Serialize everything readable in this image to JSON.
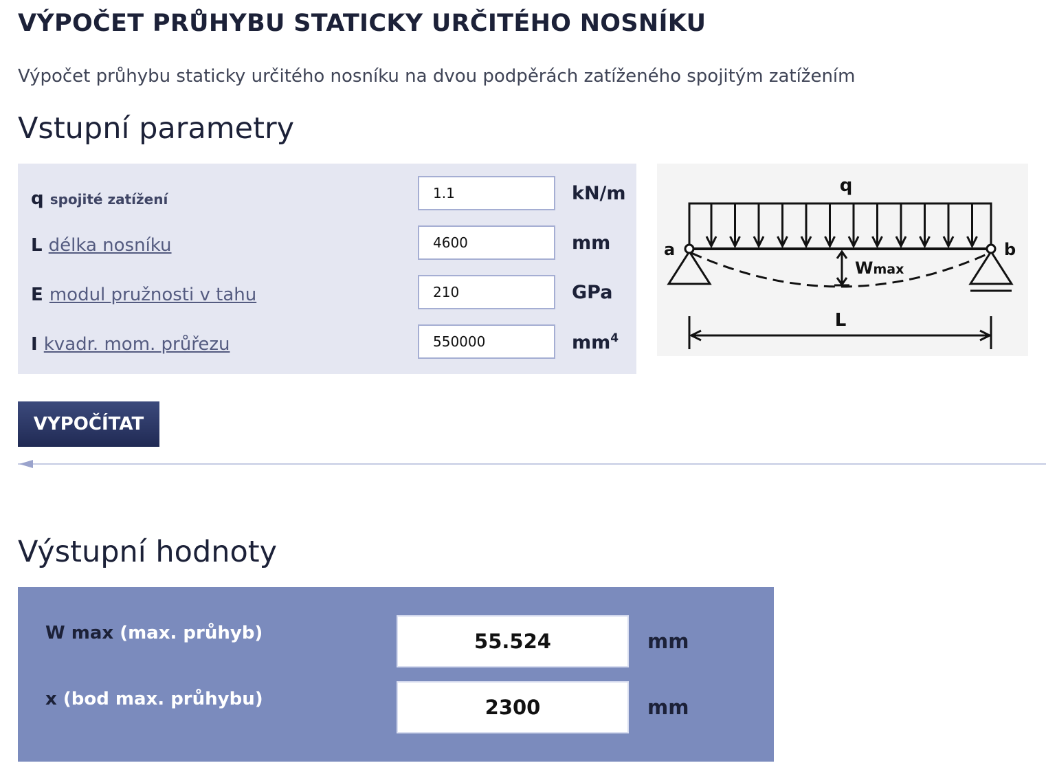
{
  "header": {
    "title": "VÝPOČET PRŮHYBU STATICKY URČITÉHO NOSNÍKU",
    "subtitle": "Výpočet průhybu staticky určitého nosníku na dvou podpěrách zatíženého spojitým zatížením"
  },
  "inputs": {
    "heading": "Vstupní parametry",
    "rows": [
      {
        "symbol": "q",
        "label": "spojité zatížení",
        "value": "1.1",
        "unit": "kN/m"
      },
      {
        "symbol": "L",
        "label": "délka nosníku",
        "value": "4600",
        "unit": "mm"
      },
      {
        "symbol": "E",
        "label": "modul pružnosti v tahu",
        "value": "210",
        "unit": "GPa"
      },
      {
        "symbol": "I",
        "label": "kvadr. mom. průřezu",
        "value": "550000",
        "unit": "mm",
        "unit_sup": "4"
      }
    ]
  },
  "diagram": {
    "load": "q",
    "support_a": "a",
    "support_b": "b",
    "deflection": "W",
    "deflection_sub": "max",
    "length": "L"
  },
  "calculate_label": "VYPOČÍTAT",
  "outputs": {
    "heading": "Výstupní hodnoty",
    "rows": [
      {
        "symbol": "W max",
        "label": " (max. průhyb)",
        "value": "55.524",
        "unit": "mm"
      },
      {
        "symbol": "x",
        "label": " (bod max. průhybu)",
        "value": "2300",
        "unit": "mm"
      }
    ]
  },
  "colors": {
    "panel_input": "#e5e7f2",
    "panel_output": "#7b8bbd",
    "button": "#2a3564",
    "link": "#545b80"
  }
}
